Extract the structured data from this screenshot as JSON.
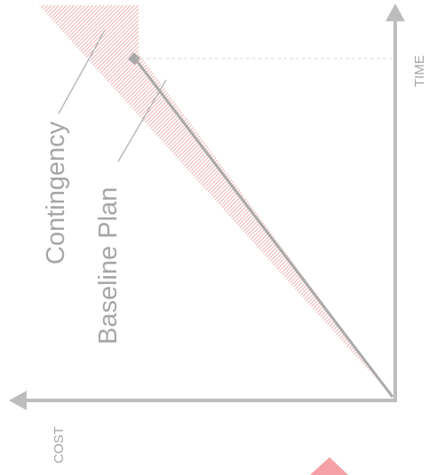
{
  "diagram": {
    "axis_labels": {
      "time": "TIME",
      "cost": "COST"
    },
    "callouts": {
      "contingency": "Contingency",
      "baseline": "Baseline Plan"
    },
    "colors": {
      "axis": "#bdbdbd",
      "hatch": "#e07a7f",
      "marker": "#f4a0a5",
      "baseline_line": "#a9a9a9",
      "label_text": "#a6a6a6",
      "guide": "#d9d9d9"
    }
  }
}
